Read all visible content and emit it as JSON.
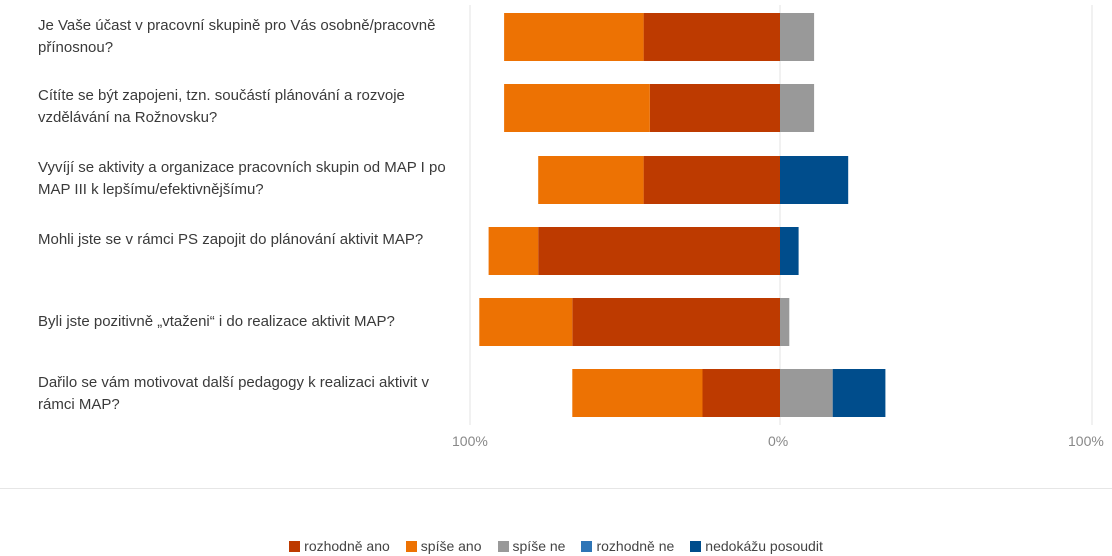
{
  "chart_data": {
    "type": "bar",
    "orientation": "horizontal",
    "stacking": "diverging",
    "categories": [
      "Je Vaše účast v pracovní skupině pro Vás osobně/pracovně přínosnou?",
      "Cítíte se být zapojeni, tzn. součástí plánování a rozvoje vzdělávání na Rožnovsku?",
      "Vyvíjí se aktivity a organizace pracovních skupin od MAP I po MAP III k lepšímu/efektivnějšímu?",
      "Mohli jste se v rámci PS zapojit do plánování aktivit MAP?",
      "Byli jste pozitivně „vtaženi“ i do realizace aktivit MAP?",
      "Dařilo se vám motivovat další pedagogy k realizaci aktivit v rámci MAP?"
    ],
    "series": [
      {
        "name": "rozhodně ano",
        "color": "#bd3a00",
        "values": [
          -44,
          -42,
          -44,
          -78,
          -67,
          -25
        ]
      },
      {
        "name": "spíše ano",
        "color": "#ed7203",
        "values": [
          -45,
          -47,
          -34,
          -16,
          -30,
          -42
        ]
      },
      {
        "name": "spíše ne",
        "color": "#999999",
        "values": [
          11,
          11,
          0,
          0,
          3,
          17
        ]
      },
      {
        "name": "rozhodně ne",
        "color": "#2e75b6",
        "values": [
          0,
          0,
          0,
          0,
          0,
          0
        ]
      },
      {
        "name": "nedokážu posoudit",
        "color": "#004d8c",
        "values": [
          0,
          0,
          22,
          6,
          0,
          17
        ]
      }
    ],
    "xlim": [
      -100,
      100
    ],
    "tick_labels": [
      "100%",
      "0%",
      "100%"
    ],
    "legend_position": "bottom"
  }
}
